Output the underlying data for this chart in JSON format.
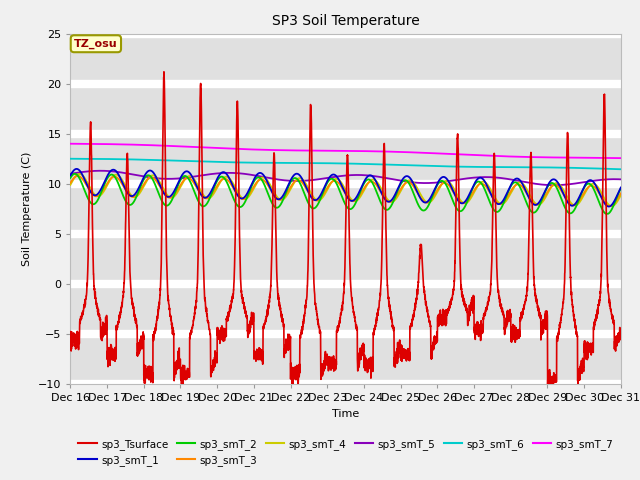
{
  "title": "SP3 Soil Temperature",
  "ylabel": "Soil Temperature (C)",
  "xlabel": "Time",
  "ylim": [
    -10,
    25
  ],
  "yticks": [
    -10,
    -5,
    0,
    5,
    10,
    15,
    20,
    25
  ],
  "xtick_labels": [
    "Dec 16",
    "Dec 17",
    "Dec 18",
    "Dec 19",
    "Dec 20",
    "Dec 21",
    "Dec 22",
    "Dec 23",
    "Dec 24",
    "Dec 25",
    "Dec 26",
    "Dec 27",
    "Dec 28",
    "Dec 29",
    "Dec 30",
    "Dec 31"
  ],
  "annotation_text": "TZ_osu",
  "annotation_color": "#990000",
  "annotation_bg": "#ffffcc",
  "annotation_border": "#999900",
  "colors": {
    "sp3_Tsurface": "#dd0000",
    "sp3_smT_1": "#0000cc",
    "sp3_smT_2": "#00cc00",
    "sp3_smT_3": "#ff8800",
    "sp3_smT_4": "#cccc00",
    "sp3_smT_5": "#8800bb",
    "sp3_smT_6": "#00cccc",
    "sp3_smT_7": "#ff00ff"
  },
  "fig_bg": "#f0f0f0",
  "plot_bg": "#e0e0e0"
}
